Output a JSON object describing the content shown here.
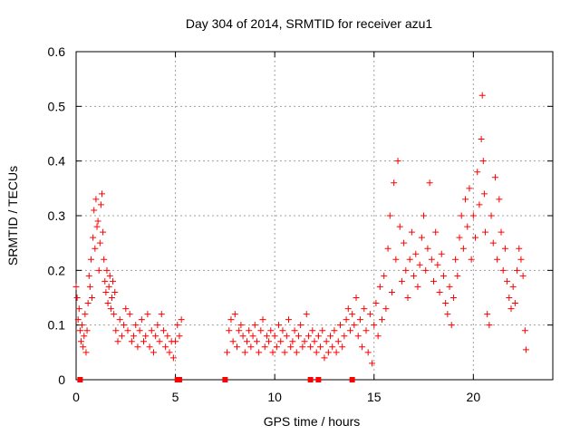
{
  "chart_data": {
    "type": "scatter",
    "title": "Day 304 of 2014, SRMTID for receiver azu1",
    "xlabel": "GPS time / hours",
    "ylabel": "SRMTID / TECUs",
    "xlim": [
      0,
      24
    ],
    "ylim": [
      0,
      0.6
    ],
    "x_ticks": [
      0,
      5,
      10,
      15,
      20
    ],
    "x_tick_labels": [
      "0",
      "5",
      "10",
      "15",
      "20"
    ],
    "y_ticks": [
      0,
      0.1,
      0.2,
      0.3,
      0.4,
      0.5,
      0.6
    ],
    "y_tick_labels": [
      "0",
      "0.1",
      "0.2",
      "0.3",
      "0.4",
      "0.5",
      "0.6"
    ],
    "grid": true,
    "marker": "plus",
    "color": "#ff0000",
    "series": [
      {
        "name": "SRMTID",
        "points": [
          [
            0.0,
            0.17
          ],
          [
            0.05,
            0.15
          ],
          [
            0.1,
            0.11
          ],
          [
            0.15,
            0.13
          ],
          [
            0.2,
            0.09
          ],
          [
            0.25,
            0.07
          ],
          [
            0.3,
            0.1
          ],
          [
            0.35,
            0.06
          ],
          [
            0.4,
            0.08
          ],
          [
            0.45,
            0.12
          ],
          [
            0.5,
            0.05
          ],
          [
            0.55,
            0.09
          ],
          [
            0.6,
            0.14
          ],
          [
            0.65,
            0.19
          ],
          [
            0.7,
            0.17
          ],
          [
            0.75,
            0.22
          ],
          [
            0.8,
            0.15
          ],
          [
            0.85,
            0.26
          ],
          [
            0.9,
            0.31
          ],
          [
            0.95,
            0.24
          ],
          [
            1.0,
            0.33
          ],
          [
            1.05,
            0.28
          ],
          [
            1.1,
            0.29
          ],
          [
            1.15,
            0.2
          ],
          [
            1.2,
            0.25
          ],
          [
            1.25,
            0.32
          ],
          [
            1.3,
            0.34
          ],
          [
            1.35,
            0.27
          ],
          [
            1.4,
            0.22
          ],
          [
            1.45,
            0.18
          ],
          [
            1.5,
            0.16
          ],
          [
            1.55,
            0.2
          ],
          [
            1.6,
            0.14
          ],
          [
            1.65,
            0.17
          ],
          [
            1.7,
            0.19
          ],
          [
            1.75,
            0.13
          ],
          [
            1.8,
            0.15
          ],
          [
            1.85,
            0.18
          ],
          [
            1.9,
            0.12
          ],
          [
            1.95,
            0.16
          ],
          [
            2.0,
            0.09
          ],
          [
            2.1,
            0.07
          ],
          [
            2.2,
            0.11
          ],
          [
            2.3,
            0.08
          ],
          [
            2.4,
            0.1
          ],
          [
            2.5,
            0.13
          ],
          [
            2.6,
            0.09
          ],
          [
            2.7,
            0.12
          ],
          [
            2.8,
            0.07
          ],
          [
            2.9,
            0.08
          ],
          [
            3.0,
            0.1
          ],
          [
            3.1,
            0.06
          ],
          [
            3.2,
            0.09
          ],
          [
            3.3,
            0.11
          ],
          [
            3.4,
            0.07
          ],
          [
            3.5,
            0.08
          ],
          [
            3.6,
            0.12
          ],
          [
            3.7,
            0.06
          ],
          [
            3.8,
            0.09
          ],
          [
            3.9,
            0.05
          ],
          [
            4.0,
            0.08
          ],
          [
            4.1,
            0.1
          ],
          [
            4.2,
            0.07
          ],
          [
            4.3,
            0.12
          ],
          [
            4.4,
            0.09
          ],
          [
            4.5,
            0.06
          ],
          [
            4.6,
            0.08
          ],
          [
            4.7,
            0.05
          ],
          [
            4.8,
            0.07
          ],
          [
            4.9,
            0.04
          ],
          [
            5.0,
            0.07
          ],
          [
            5.1,
            0.1
          ],
          [
            5.2,
            0.08
          ],
          [
            5.3,
            0.11
          ],
          [
            7.6,
            0.05
          ],
          [
            7.7,
            0.09
          ],
          [
            7.8,
            0.11
          ],
          [
            7.9,
            0.07
          ],
          [
            8.0,
            0.12
          ],
          [
            8.1,
            0.06
          ],
          [
            8.2,
            0.09
          ],
          [
            8.3,
            0.1
          ],
          [
            8.4,
            0.08
          ],
          [
            8.5,
            0.05
          ],
          [
            8.6,
            0.07
          ],
          [
            8.7,
            0.09
          ],
          [
            8.8,
            0.06
          ],
          [
            8.9,
            0.08
          ],
          [
            9.0,
            0.1
          ],
          [
            9.1,
            0.07
          ],
          [
            9.2,
            0.05
          ],
          [
            9.3,
            0.09
          ],
          [
            9.4,
            0.11
          ],
          [
            9.5,
            0.06
          ],
          [
            9.6,
            0.08
          ],
          [
            9.7,
            0.07
          ],
          [
            9.8,
            0.09
          ],
          [
            9.9,
            0.05
          ],
          [
            10.0,
            0.08
          ],
          [
            10.1,
            0.06
          ],
          [
            10.2,
            0.1
          ],
          [
            10.3,
            0.07
          ],
          [
            10.4,
            0.09
          ],
          [
            10.5,
            0.05
          ],
          [
            10.6,
            0.08
          ],
          [
            10.7,
            0.11
          ],
          [
            10.8,
            0.06
          ],
          [
            10.9,
            0.07
          ],
          [
            11.0,
            0.09
          ],
          [
            11.1,
            0.05
          ],
          [
            11.2,
            0.08
          ],
          [
            11.3,
            0.1
          ],
          [
            11.4,
            0.06
          ],
          [
            11.5,
            0.07
          ],
          [
            11.6,
            0.12
          ],
          [
            11.7,
            0.08
          ],
          [
            11.8,
            0.06
          ],
          [
            11.9,
            0.09
          ],
          [
            12.0,
            0.07
          ],
          [
            12.1,
            0.05
          ],
          [
            12.2,
            0.08
          ],
          [
            12.3,
            0.06
          ],
          [
            12.4,
            0.09
          ],
          [
            12.5,
            0.04
          ],
          [
            12.6,
            0.07
          ],
          [
            12.7,
            0.05
          ],
          [
            12.8,
            0.08
          ],
          [
            12.9,
            0.06
          ],
          [
            13.0,
            0.09
          ],
          [
            13.1,
            0.05
          ],
          [
            13.2,
            0.07
          ],
          [
            13.3,
            0.1
          ],
          [
            13.4,
            0.06
          ],
          [
            13.5,
            0.08
          ],
          [
            13.6,
            0.11
          ],
          [
            13.7,
            0.13
          ],
          [
            13.8,
            0.09
          ],
          [
            13.9,
            0.12
          ],
          [
            14.0,
            0.1
          ],
          [
            14.1,
            0.15
          ],
          [
            14.2,
            0.08
          ],
          [
            14.3,
            0.11
          ],
          [
            14.4,
            0.06
          ],
          [
            14.5,
            0.13
          ],
          [
            14.6,
            0.09
          ],
          [
            14.7,
            0.05
          ],
          [
            14.8,
            0.12
          ],
          [
            14.9,
            0.03
          ],
          [
            15.0,
            0.1
          ],
          [
            15.1,
            0.14
          ],
          [
            15.2,
            0.08
          ],
          [
            15.3,
            0.17
          ],
          [
            15.4,
            0.11
          ],
          [
            15.5,
            0.19
          ],
          [
            15.6,
            0.13
          ],
          [
            15.7,
            0.24
          ],
          [
            15.8,
            0.3
          ],
          [
            15.9,
            0.16
          ],
          [
            16.0,
            0.36
          ],
          [
            16.1,
            0.22
          ],
          [
            16.2,
            0.4
          ],
          [
            16.3,
            0.28
          ],
          [
            16.4,
            0.18
          ],
          [
            16.5,
            0.25
          ],
          [
            16.6,
            0.2
          ],
          [
            16.7,
            0.15
          ],
          [
            16.8,
            0.22
          ],
          [
            16.9,
            0.27
          ],
          [
            17.0,
            0.19
          ],
          [
            17.1,
            0.23
          ],
          [
            17.2,
            0.17
          ],
          [
            17.3,
            0.21
          ],
          [
            17.4,
            0.26
          ],
          [
            17.5,
            0.3
          ],
          [
            17.6,
            0.2
          ],
          [
            17.7,
            0.24
          ],
          [
            17.8,
            0.36
          ],
          [
            17.9,
            0.22
          ],
          [
            18.0,
            0.18
          ],
          [
            18.1,
            0.27
          ],
          [
            18.2,
            0.21
          ],
          [
            18.3,
            0.16
          ],
          [
            18.4,
            0.23
          ],
          [
            18.5,
            0.19
          ],
          [
            18.6,
            0.14
          ],
          [
            18.7,
            0.12
          ],
          [
            18.8,
            0.17
          ],
          [
            18.9,
            0.1
          ],
          [
            19.0,
            0.15
          ],
          [
            19.1,
            0.22
          ],
          [
            19.2,
            0.19
          ],
          [
            19.3,
            0.26
          ],
          [
            19.4,
            0.3
          ],
          [
            19.5,
            0.24
          ],
          [
            19.6,
            0.33
          ],
          [
            19.7,
            0.28
          ],
          [
            19.8,
            0.35
          ],
          [
            19.9,
            0.22
          ],
          [
            20.0,
            0.3
          ],
          [
            20.1,
            0.26
          ],
          [
            20.2,
            0.38
          ],
          [
            20.3,
            0.32
          ],
          [
            20.4,
            0.44
          ],
          [
            20.45,
            0.52
          ],
          [
            20.5,
            0.4
          ],
          [
            20.55,
            0.34
          ],
          [
            20.6,
            0.27
          ],
          [
            20.7,
            0.12
          ],
          [
            20.8,
            0.1
          ],
          [
            20.9,
            0.3
          ],
          [
            21.0,
            0.25
          ],
          [
            21.1,
            0.37
          ],
          [
            21.2,
            0.22
          ],
          [
            21.3,
            0.33
          ],
          [
            21.4,
            0.27
          ],
          [
            21.5,
            0.2
          ],
          [
            21.6,
            0.24
          ],
          [
            21.7,
            0.18
          ],
          [
            21.8,
            0.15
          ],
          [
            21.9,
            0.13
          ],
          [
            22.0,
            0.17
          ],
          [
            22.1,
            0.14
          ],
          [
            22.2,
            0.2
          ],
          [
            22.3,
            0.24
          ],
          [
            22.4,
            0.22
          ],
          [
            22.5,
            0.19
          ],
          [
            22.6,
            0.09
          ],
          [
            22.65,
            0.055
          ]
        ]
      }
    ],
    "gap_markers_x": [
      0.2,
      5.1,
      5.2,
      7.5,
      11.8,
      12.2,
      13.9
    ]
  }
}
